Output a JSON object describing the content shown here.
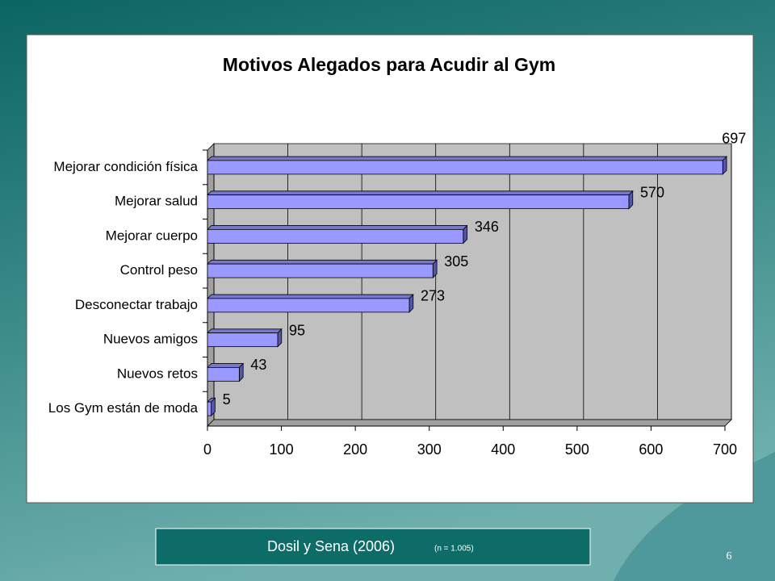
{
  "chart_data": {
    "type": "bar3d",
    "orientation": "horizontal",
    "title": "Motivos Alegados para Acudir al Gym",
    "categories": [
      "Mejorar condición física",
      "Mejorar salud",
      "Mejorar cuerpo",
      "Control peso",
      "Desconectar trabajo",
      "Nuevos amigos",
      "Nuevos retos",
      "Los Gym están de moda"
    ],
    "values": [
      697,
      570,
      346,
      305,
      273,
      95,
      43,
      5
    ],
    "color": "#9999ff",
    "xlim": [
      0,
      700
    ],
    "xticks": [
      0,
      100,
      200,
      300,
      400,
      500,
      600,
      700
    ],
    "grid": true
  },
  "footer": {
    "citation": "Dosil y Sena (2006)",
    "note": "(n = 1.005)"
  },
  "page_number": "6"
}
